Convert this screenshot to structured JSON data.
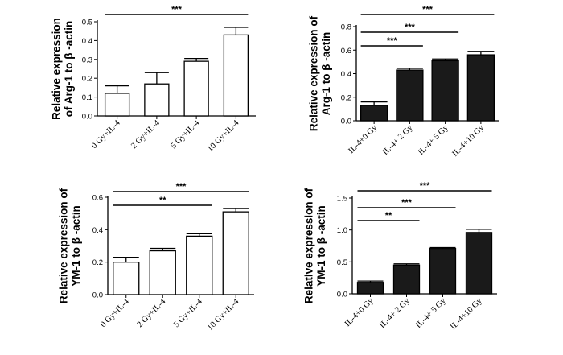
{
  "colors": {
    "white_bar": "#ffffff",
    "black_bar": "#1a1a1a",
    "stroke": "#000000"
  },
  "chart_data": [
    {
      "type": "bar",
      "panel": "top-left",
      "ylabel_line1": "Relative expression",
      "ylabel_line2": "of Arg-1 to β -actin",
      "categories": [
        "0 Gy+IL-4",
        "2 Gy+IL-4",
        "5 Gy+IL-4",
        "10 Gy+IL-4"
      ],
      "values": [
        0.12,
        0.17,
        0.29,
        0.43
      ],
      "errors": [
        0.04,
        0.06,
        0.015,
        0.04
      ],
      "yticks": [
        "0.0",
        "0.1",
        "0.2",
        "0.3",
        "0.4",
        "0.5"
      ],
      "ylim": [
        0,
        0.5
      ],
      "bar_color": "#ffffff",
      "significance": [
        {
          "from": 0,
          "to": 3,
          "label": "***"
        }
      ]
    },
    {
      "type": "bar",
      "panel": "top-right",
      "ylabel_line1": "Relative expression of",
      "ylabel_line2": "Arg-1 to β -actin",
      "categories": [
        "IL-4+0 Gy",
        "IL-4+ 2 Gy",
        "IL-4+ 5 Gy",
        "IL-4+10 Gy"
      ],
      "values": [
        0.13,
        0.43,
        0.51,
        0.56
      ],
      "errors": [
        0.03,
        0.015,
        0.015,
        0.03
      ],
      "yticks": [
        "0.0",
        "0.2",
        "0.4",
        "0.6",
        "0.8"
      ],
      "ylim": [
        0,
        0.8
      ],
      "bar_color": "#1a1a1a",
      "significance": [
        {
          "from": 0,
          "to": 3,
          "label": "***"
        },
        {
          "from": 0,
          "to": 2,
          "label": "***"
        },
        {
          "from": 0,
          "to": 1,
          "label": "***"
        }
      ]
    },
    {
      "type": "bar",
      "panel": "bottom-left",
      "ylabel_line1": "Relative expression of",
      "ylabel_line2": "YM-1 to β -actin",
      "categories": [
        "0 Gy+IL-4",
        "2 Gy+IL-4",
        "5 Gy+IL-4",
        "10 Gy+IL-4"
      ],
      "values": [
        0.2,
        0.27,
        0.36,
        0.51
      ],
      "errors": [
        0.03,
        0.015,
        0.015,
        0.02
      ],
      "yticks": [
        "0.0",
        "0.2",
        "0.4",
        "0.6"
      ],
      "ylim": [
        0,
        0.6
      ],
      "bar_color": "#ffffff",
      "significance": [
        {
          "from": 0,
          "to": 3,
          "label": "***"
        },
        {
          "from": 0,
          "to": 2,
          "label": "**"
        }
      ]
    },
    {
      "type": "bar",
      "panel": "bottom-right",
      "ylabel_line1": "Relative expression of",
      "ylabel_line2": "YM-1 to β -actin",
      "categories": [
        "IL-4+0 Gy",
        "IL-4+ 2 Gy",
        "IL-4+ 5 Gy",
        "IL-4+10 Gy"
      ],
      "values": [
        0.18,
        0.45,
        0.71,
        0.96
      ],
      "errors": [
        0.02,
        0.02,
        0.015,
        0.05
      ],
      "yticks": [
        "0.0",
        "0.5",
        "1.0",
        "1.5"
      ],
      "ylim": [
        0,
        1.5
      ],
      "bar_color": "#1a1a1a",
      "significance": [
        {
          "from": 0,
          "to": 3,
          "label": "***"
        },
        {
          "from": 0,
          "to": 2,
          "label": "***"
        },
        {
          "from": 0,
          "to": 1,
          "label": "**"
        }
      ]
    }
  ]
}
